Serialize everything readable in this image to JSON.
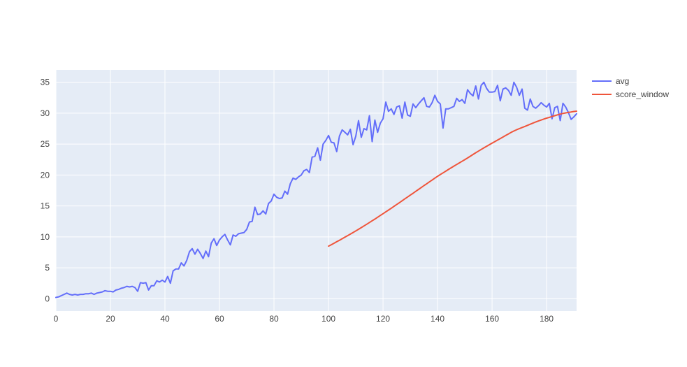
{
  "chart_data": {
    "type": "line",
    "title": "",
    "xlabel": "",
    "ylabel": "",
    "xlim": [
      0,
      191
    ],
    "ylim": [
      -2,
      37
    ],
    "x_ticks": [
      0,
      20,
      40,
      60,
      80,
      100,
      120,
      140,
      160,
      180
    ],
    "y_ticks": [
      0,
      5,
      10,
      15,
      20,
      25,
      30,
      35
    ],
    "grid": true,
    "legend_position": "top-right",
    "plot_background": "#E5ECF6",
    "series": [
      {
        "name": "avg",
        "color": "#636EFA",
        "x_start": 0,
        "values": [
          0.2,
          0.3,
          0.5,
          0.7,
          0.9,
          0.7,
          0.6,
          0.7,
          0.6,
          0.7,
          0.7,
          0.8,
          0.8,
          0.9,
          0.7,
          0.9,
          1.0,
          1.1,
          1.3,
          1.2,
          1.2,
          1.1,
          1.4,
          1.5,
          1.7,
          1.8,
          2.0,
          1.9,
          2.0,
          1.8,
          1.2,
          2.6,
          2.5,
          2.6,
          1.4,
          2.1,
          2.1,
          2.9,
          2.7,
          3.0,
          2.7,
          3.6,
          2.5,
          4.5,
          4.8,
          4.8,
          5.8,
          5.3,
          6.2,
          7.6,
          8.1,
          7.2,
          8.0,
          7.3,
          6.5,
          7.7,
          6.8,
          9.0,
          9.7,
          8.6,
          9.5,
          10.0,
          10.4,
          9.5,
          8.7,
          10.3,
          10.1,
          10.5,
          10.6,
          10.7,
          11.2,
          12.4,
          12.5,
          14.8,
          13.6,
          13.7,
          14.2,
          13.7,
          15.4,
          15.8,
          16.9,
          16.4,
          16.2,
          16.3,
          17.4,
          16.9,
          18.6,
          19.5,
          19.3,
          19.7,
          20.0,
          20.7,
          20.9,
          20.4,
          22.9,
          23.0,
          24.4,
          22.4,
          25.0,
          25.6,
          26.4,
          25.3,
          25.2,
          23.8,
          26.3,
          27.3,
          26.9,
          26.5,
          27.4,
          24.9,
          26.3,
          28.8,
          26.1,
          27.5,
          27.3,
          29.6,
          25.4,
          28.9,
          26.9,
          28.4,
          29.1,
          31.8,
          30.3,
          30.7,
          29.8,
          31.0,
          31.2,
          29.2,
          31.8,
          29.7,
          29.5,
          31.5,
          30.9,
          31.5,
          32.0,
          32.5,
          31.1,
          31.0,
          31.7,
          32.9,
          31.9,
          31.5,
          27.6,
          30.7,
          30.7,
          30.9,
          31.1,
          32.4,
          31.9,
          32.2,
          31.6,
          33.8,
          33.2,
          32.8,
          34.4,
          32.3,
          34.5,
          35.0,
          34.0,
          33.4,
          33.4,
          33.5,
          34.5,
          32.0,
          33.9,
          34.1,
          33.7,
          32.9,
          35.0,
          34.2,
          32.9,
          33.9,
          30.8,
          30.5,
          32.3,
          31.1,
          30.8,
          31.2,
          31.7,
          31.3,
          31.0,
          31.6,
          29.1,
          30.9,
          31.1,
          28.8,
          31.6,
          31.0,
          30.1,
          29.0,
          29.4,
          29.9
        ]
      },
      {
        "name": "score_window",
        "color": "#EF553B",
        "x_start": 100,
        "values": [
          8.5,
          8.73,
          8.97,
          9.21,
          9.45,
          9.7,
          9.95,
          10.2,
          10.45,
          10.71,
          10.97,
          11.23,
          11.5,
          11.77,
          12.04,
          12.32,
          12.6,
          12.88,
          13.17,
          13.46,
          13.75,
          14.04,
          14.33,
          14.63,
          14.93,
          15.23,
          15.53,
          15.84,
          16.15,
          16.45,
          16.75,
          17.05,
          17.36,
          17.67,
          17.98,
          18.29,
          18.59,
          18.89,
          19.19,
          19.5,
          19.8,
          20.08,
          20.35,
          20.62,
          20.9,
          21.17,
          21.44,
          21.71,
          21.97,
          22.23,
          22.49,
          22.76,
          23.04,
          23.32,
          23.6,
          23.87,
          24.14,
          24.4,
          24.65,
          24.9,
          25.15,
          25.4,
          25.65,
          25.9,
          26.15,
          26.4,
          26.65,
          26.9,
          27.12,
          27.32,
          27.5,
          27.68,
          27.86,
          28.04,
          28.22,
          28.4,
          28.58,
          28.74,
          28.9,
          29.05,
          29.2,
          29.33,
          29.47,
          29.6,
          29.73,
          29.86,
          29.96,
          30.05,
          30.13,
          30.2,
          30.27,
          30.33
        ]
      }
    ]
  }
}
